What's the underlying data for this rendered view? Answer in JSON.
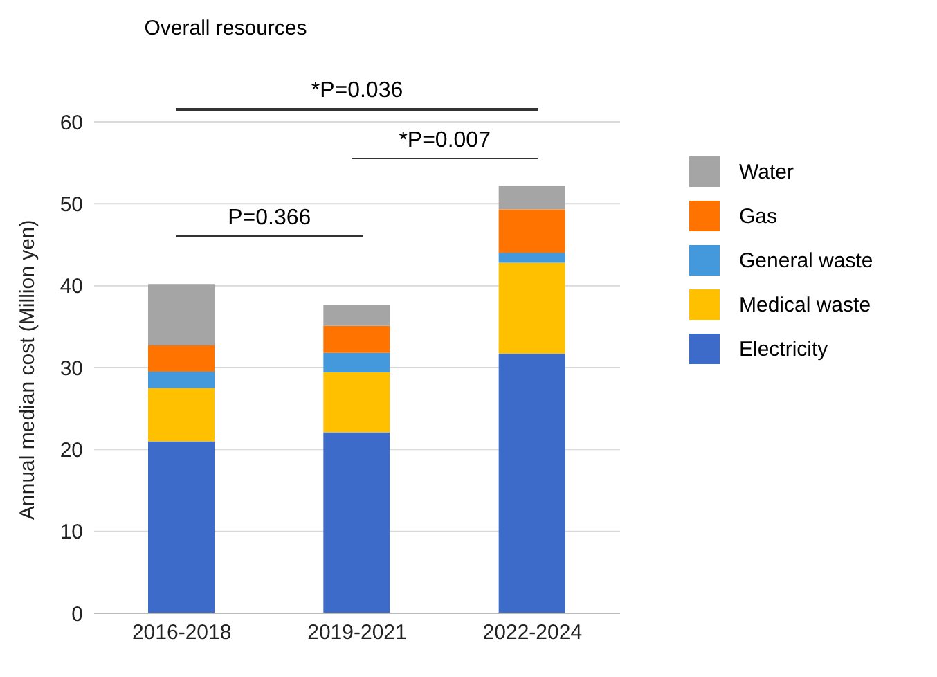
{
  "chart_data": {
    "type": "bar",
    "title": "Overall resources",
    "ylabel": "Annual median cost (Million yen)",
    "categories": [
      "2016-2018",
      "2019-2021",
      "2022-2024"
    ],
    "stacked": true,
    "series": [
      {
        "name": "Electricity",
        "color": "#3c6bc9",
        "values": [
          21.0,
          22.1,
          31.7
        ]
      },
      {
        "name": "Medical waste",
        "color": "#ffc000",
        "values": [
          6.5,
          7.3,
          11.1
        ]
      },
      {
        "name": "General waste",
        "color": "#4499dd",
        "values": [
          2.0,
          2.4,
          1.2
        ]
      },
      {
        "name": "Gas",
        "color": "#ff7300",
        "values": [
          3.2,
          3.3,
          5.3
        ]
      },
      {
        "name": "Water",
        "color": "#a5a5a5",
        "values": [
          7.5,
          2.6,
          2.9
        ]
      }
    ],
    "ylim": [
      0,
      60
    ],
    "yticks": [
      0,
      10,
      20,
      30,
      40,
      50,
      60
    ],
    "grid": "y",
    "legend": "right",
    "annotations": [
      "P=0.366",
      "*P=0.007",
      "*P=0.036"
    ]
  }
}
